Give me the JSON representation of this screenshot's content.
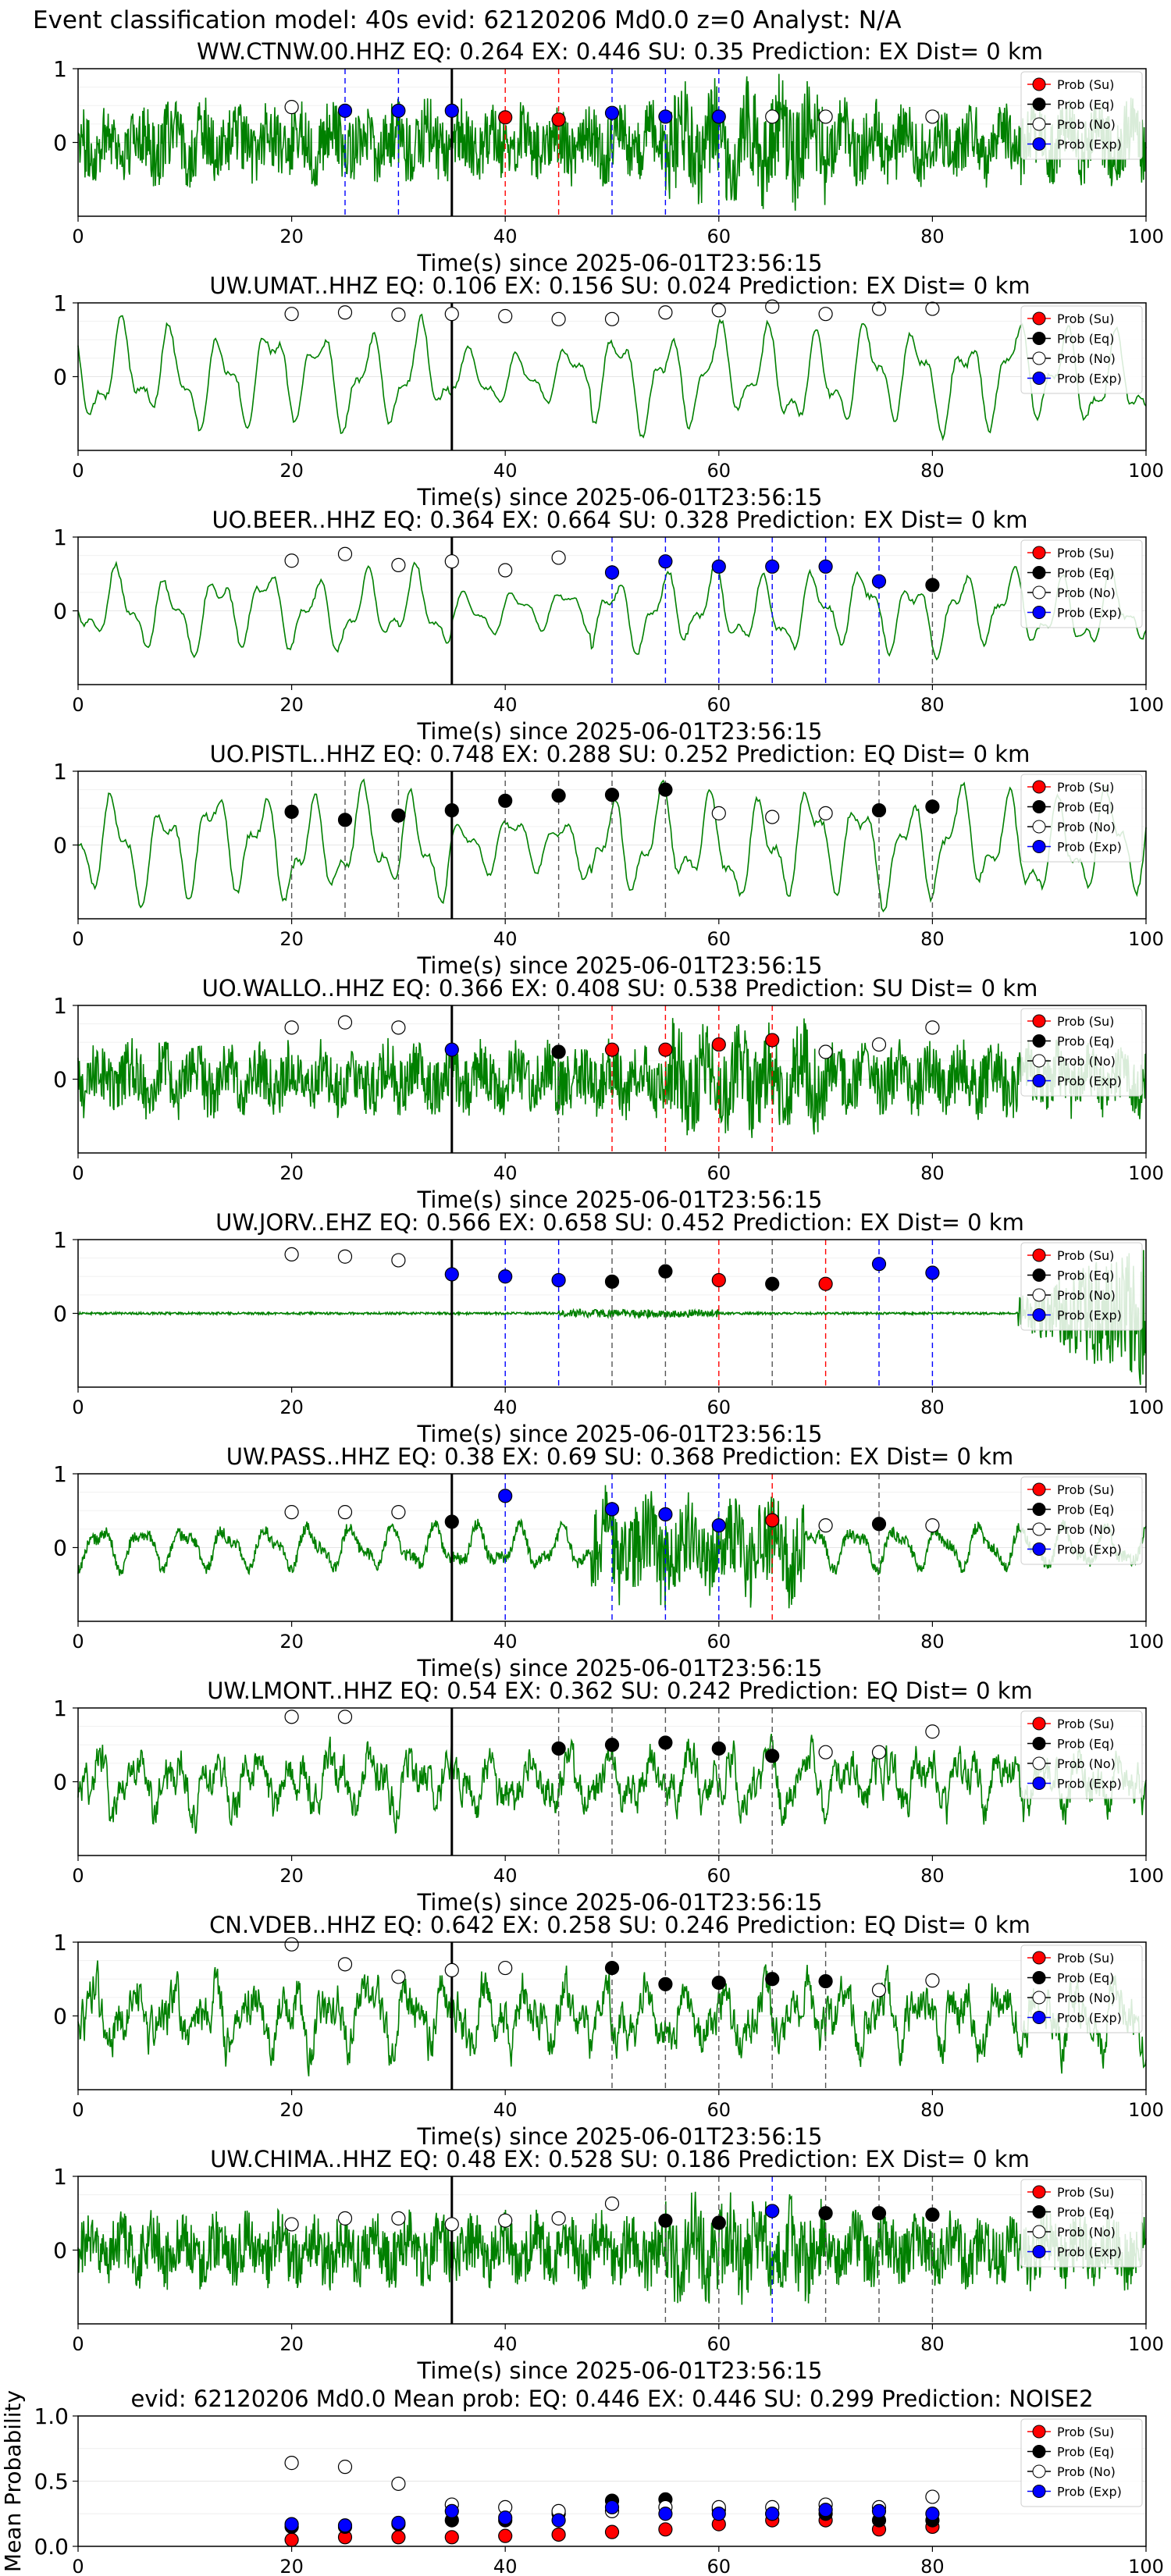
{
  "figure": {
    "suptitle": "Event classification model: 40s evid: 62120206 Md0.0 z=0 Analyst: N/A"
  },
  "legend_entries": [
    "Prob (Su)",
    "Prob (Eq)",
    "Prob (No)",
    "Prob (Exp)"
  ],
  "colors": {
    "waveform": "#008000",
    "su": "#ff0000",
    "eq": "#000000",
    "no": "#ffffff",
    "exp": "#0000ff",
    "origin_line": "#000000"
  },
  "chart_data": [
    {
      "type": "line",
      "title": "WW.CTNW.00.HHZ   EQ: 0.264  EX: 0.446  SU: 0.35   Prediction: EX    Dist= 0 km",
      "xlabel": "Time(s) since 2025-06-01T23:56:15",
      "xlim": [
        0,
        100
      ],
      "ylim": [
        -1,
        1
      ],
      "xticks": [
        0,
        20,
        40,
        60,
        80,
        100
      ],
      "yticks": [
        0,
        1
      ],
      "origin_time": 35,
      "noise_style": "hf",
      "amplitude": 0.5,
      "points": [
        {
          "x": 20,
          "y": 0.48,
          "cls": "no"
        },
        {
          "x": 25,
          "y": 0.43,
          "cls": "exp"
        },
        {
          "x": 30,
          "y": 0.43,
          "cls": "exp"
        },
        {
          "x": 35,
          "y": 0.43,
          "cls": "exp"
        },
        {
          "x": 40,
          "y": 0.34,
          "cls": "su"
        },
        {
          "x": 45,
          "y": 0.31,
          "cls": "su"
        },
        {
          "x": 50,
          "y": 0.4,
          "cls": "exp"
        },
        {
          "x": 55,
          "y": 0.35,
          "cls": "exp"
        },
        {
          "x": 60,
          "y": 0.35,
          "cls": "exp"
        },
        {
          "x": 65,
          "y": 0.35,
          "cls": "no"
        },
        {
          "x": 70,
          "y": 0.35,
          "cls": "no"
        },
        {
          "x": 80,
          "y": 0.35,
          "cls": "no"
        }
      ]
    },
    {
      "type": "line",
      "title": "UW.UMAT..HHZ   EQ: 0.106  EX: 0.156  SU: 0.024   Prediction: EX    Dist= 0 km",
      "xlabel": "Time(s) since 2025-06-01T23:56:15",
      "xlim": [
        0,
        100
      ],
      "ylim": [
        -1,
        1
      ],
      "xticks": [
        0,
        20,
        40,
        60,
        80,
        100
      ],
      "yticks": [
        0,
        1
      ],
      "origin_time": 35,
      "noise_style": "lf",
      "amplitude": 0.7,
      "points": [
        {
          "x": 20,
          "y": 0.85,
          "cls": "no"
        },
        {
          "x": 25,
          "y": 0.87,
          "cls": "no"
        },
        {
          "x": 30,
          "y": 0.84,
          "cls": "no"
        },
        {
          "x": 35,
          "y": 0.85,
          "cls": "no"
        },
        {
          "x": 40,
          "y": 0.82,
          "cls": "no"
        },
        {
          "x": 45,
          "y": 0.78,
          "cls": "no"
        },
        {
          "x": 50,
          "y": 0.78,
          "cls": "no"
        },
        {
          "x": 55,
          "y": 0.87,
          "cls": "no"
        },
        {
          "x": 60,
          "y": 0.9,
          "cls": "no"
        },
        {
          "x": 65,
          "y": 0.95,
          "cls": "no"
        },
        {
          "x": 70,
          "y": 0.85,
          "cls": "no"
        },
        {
          "x": 75,
          "y": 0.92,
          "cls": "no"
        },
        {
          "x": 80,
          "y": 0.92,
          "cls": "no"
        }
      ]
    },
    {
      "type": "line",
      "title": "UO.BEER..HHZ   EQ: 0.364  EX: 0.664  SU: 0.328   Prediction: EX    Dist= 0 km",
      "xlabel": "Time(s) since 2025-06-01T23:56:15",
      "xlim": [
        0,
        100
      ],
      "ylim": [
        -1,
        1
      ],
      "xticks": [
        0,
        20,
        40,
        60,
        80,
        100
      ],
      "yticks": [
        0,
        1
      ],
      "origin_time": 35,
      "noise_style": "lf",
      "amplitude": 0.55,
      "points": [
        {
          "x": 20,
          "y": 0.68,
          "cls": "no"
        },
        {
          "x": 25,
          "y": 0.77,
          "cls": "no"
        },
        {
          "x": 30,
          "y": 0.62,
          "cls": "no"
        },
        {
          "x": 35,
          "y": 0.67,
          "cls": "no"
        },
        {
          "x": 40,
          "y": 0.55,
          "cls": "no"
        },
        {
          "x": 45,
          "y": 0.72,
          "cls": "no"
        },
        {
          "x": 50,
          "y": 0.52,
          "cls": "exp"
        },
        {
          "x": 55,
          "y": 0.67,
          "cls": "exp"
        },
        {
          "x": 60,
          "y": 0.6,
          "cls": "exp"
        },
        {
          "x": 65,
          "y": 0.6,
          "cls": "exp"
        },
        {
          "x": 70,
          "y": 0.6,
          "cls": "exp"
        },
        {
          "x": 75,
          "y": 0.4,
          "cls": "exp"
        },
        {
          "x": 80,
          "y": 0.35,
          "cls": "eq"
        }
      ]
    },
    {
      "type": "line",
      "title": "UO.PISTL..HHZ   EQ: 0.748  EX: 0.288  SU: 0.252   Prediction: EQ    Dist= 0 km",
      "xlabel": "Time(s) since 2025-06-01T23:56:15",
      "xlim": [
        0,
        100
      ],
      "ylim": [
        -1,
        1
      ],
      "xticks": [
        0,
        20,
        40,
        60,
        80,
        100
      ],
      "yticks": [
        0,
        1
      ],
      "origin_time": 35,
      "noise_style": "lf",
      "amplitude": 0.75,
      "points": [
        {
          "x": 20,
          "y": 0.45,
          "cls": "eq"
        },
        {
          "x": 25,
          "y": 0.34,
          "cls": "eq"
        },
        {
          "x": 30,
          "y": 0.4,
          "cls": "eq"
        },
        {
          "x": 35,
          "y": 0.47,
          "cls": "eq"
        },
        {
          "x": 40,
          "y": 0.6,
          "cls": "eq"
        },
        {
          "x": 45,
          "y": 0.67,
          "cls": "eq"
        },
        {
          "x": 50,
          "y": 0.68,
          "cls": "eq"
        },
        {
          "x": 55,
          "y": 0.75,
          "cls": "eq"
        },
        {
          "x": 60,
          "y": 0.43,
          "cls": "no"
        },
        {
          "x": 65,
          "y": 0.38,
          "cls": "no"
        },
        {
          "x": 70,
          "y": 0.43,
          "cls": "no"
        },
        {
          "x": 75,
          "y": 0.47,
          "cls": "eq"
        },
        {
          "x": 80,
          "y": 0.52,
          "cls": "eq"
        }
      ]
    },
    {
      "type": "line",
      "title": "UO.WALLO..HHZ   EQ: 0.366  EX: 0.408  SU: 0.538   Prediction: SU    Dist= 0 km",
      "xlabel": "Time(s) since 2025-06-01T23:56:15",
      "xlim": [
        0,
        100
      ],
      "ylim": [
        -1,
        1
      ],
      "xticks": [
        0,
        20,
        40,
        60,
        80,
        100
      ],
      "yticks": [
        0,
        1
      ],
      "origin_time": 35,
      "noise_style": "hf",
      "amplitude": 0.45,
      "points": [
        {
          "x": 20,
          "y": 0.7,
          "cls": "no"
        },
        {
          "x": 25,
          "y": 0.77,
          "cls": "no"
        },
        {
          "x": 30,
          "y": 0.7,
          "cls": "no"
        },
        {
          "x": 35,
          "y": 0.4,
          "cls": "exp"
        },
        {
          "x": 45,
          "y": 0.37,
          "cls": "eq"
        },
        {
          "x": 50,
          "y": 0.4,
          "cls": "su"
        },
        {
          "x": 55,
          "y": 0.4,
          "cls": "su"
        },
        {
          "x": 60,
          "y": 0.47,
          "cls": "su"
        },
        {
          "x": 65,
          "y": 0.53,
          "cls": "su"
        },
        {
          "x": 70,
          "y": 0.37,
          "cls": "no"
        },
        {
          "x": 75,
          "y": 0.47,
          "cls": "no"
        },
        {
          "x": 80,
          "y": 0.7,
          "cls": "no"
        }
      ]
    },
    {
      "type": "line",
      "title": "UW.JORV..EHZ   EQ: 0.566  EX: 0.658  SU: 0.452   Prediction: EX    Dist= 0 km",
      "xlabel": "Time(s) since 2025-06-01T23:56:15",
      "xlim": [
        0,
        100
      ],
      "ylim": [
        -1,
        1
      ],
      "xticks": [
        0,
        20,
        40,
        60,
        80,
        100
      ],
      "yticks": [
        0,
        1
      ],
      "origin_time": 35,
      "noise_style": "quiet",
      "amplitude": 0.03,
      "points": [
        {
          "x": 20,
          "y": 0.8,
          "cls": "no"
        },
        {
          "x": 25,
          "y": 0.77,
          "cls": "no"
        },
        {
          "x": 30,
          "y": 0.72,
          "cls": "no"
        },
        {
          "x": 35,
          "y": 0.53,
          "cls": "exp"
        },
        {
          "x": 40,
          "y": 0.5,
          "cls": "exp"
        },
        {
          "x": 45,
          "y": 0.45,
          "cls": "exp"
        },
        {
          "x": 50,
          "y": 0.43,
          "cls": "eq"
        },
        {
          "x": 55,
          "y": 0.57,
          "cls": "eq"
        },
        {
          "x": 60,
          "y": 0.45,
          "cls": "su"
        },
        {
          "x": 65,
          "y": 0.4,
          "cls": "eq"
        },
        {
          "x": 70,
          "y": 0.4,
          "cls": "su"
        },
        {
          "x": 75,
          "y": 0.67,
          "cls": "exp"
        },
        {
          "x": 80,
          "y": 0.55,
          "cls": "exp"
        }
      ]
    },
    {
      "type": "line",
      "title": "UW.PASS..HHZ   EQ: 0.38  EX: 0.69  SU: 0.368   Prediction: EX    Dist= 0 km",
      "xlabel": "Time(s) since 2025-06-01T23:56:15",
      "xlim": [
        0,
        100
      ],
      "ylim": [
        -1,
        1
      ],
      "xticks": [
        0,
        20,
        40,
        60,
        80,
        100
      ],
      "yticks": [
        0,
        1
      ],
      "origin_time": 35,
      "noise_style": "burst",
      "amplitude": 0.4,
      "points": [
        {
          "x": 20,
          "y": 0.48,
          "cls": "no"
        },
        {
          "x": 25,
          "y": 0.48,
          "cls": "no"
        },
        {
          "x": 30,
          "y": 0.48,
          "cls": "no"
        },
        {
          "x": 35,
          "y": 0.35,
          "cls": "eq"
        },
        {
          "x": 40,
          "y": 0.7,
          "cls": "exp"
        },
        {
          "x": 50,
          "y": 0.52,
          "cls": "exp"
        },
        {
          "x": 55,
          "y": 0.45,
          "cls": "exp"
        },
        {
          "x": 60,
          "y": 0.3,
          "cls": "exp"
        },
        {
          "x": 65,
          "y": 0.37,
          "cls": "su"
        },
        {
          "x": 70,
          "y": 0.3,
          "cls": "no"
        },
        {
          "x": 75,
          "y": 0.32,
          "cls": "eq"
        },
        {
          "x": 80,
          "y": 0.3,
          "cls": "no"
        }
      ]
    },
    {
      "type": "line",
      "title": "UW.LMONT..HHZ   EQ: 0.54  EX: 0.362  SU: 0.242   Prediction: EQ    Dist= 0 km",
      "xlabel": "Time(s) since 2025-06-01T23:56:15",
      "xlim": [
        0,
        100
      ],
      "ylim": [
        -1,
        1
      ],
      "xticks": [
        0,
        20,
        40,
        60,
        80,
        100
      ],
      "yticks": [
        0,
        1
      ],
      "origin_time": 35,
      "noise_style": "mf",
      "amplitude": 0.55,
      "points": [
        {
          "x": 20,
          "y": 0.88,
          "cls": "no"
        },
        {
          "x": 25,
          "y": 0.88,
          "cls": "no"
        },
        {
          "x": 45,
          "y": 0.45,
          "cls": "eq"
        },
        {
          "x": 50,
          "y": 0.5,
          "cls": "eq"
        },
        {
          "x": 55,
          "y": 0.53,
          "cls": "eq"
        },
        {
          "x": 60,
          "y": 0.45,
          "cls": "eq"
        },
        {
          "x": 65,
          "y": 0.35,
          "cls": "eq"
        },
        {
          "x": 70,
          "y": 0.4,
          "cls": "no"
        },
        {
          "x": 75,
          "y": 0.4,
          "cls": "no"
        },
        {
          "x": 80,
          "y": 0.68,
          "cls": "no"
        }
      ]
    },
    {
      "type": "line",
      "title": "CN.VDEB..HHZ   EQ: 0.642  EX: 0.258  SU: 0.246   Prediction: EQ    Dist= 0 km",
      "xlabel": "Time(s) since 2025-06-01T23:56:15",
      "xlim": [
        0,
        100
      ],
      "ylim": [
        -1,
        1
      ],
      "xticks": [
        0,
        20,
        40,
        60,
        80,
        100
      ],
      "yticks": [
        0,
        1
      ],
      "origin_time": 35,
      "noise_style": "mf",
      "amplitude": 0.6,
      "points": [
        {
          "x": 20,
          "y": 0.97,
          "cls": "no"
        },
        {
          "x": 25,
          "y": 0.7,
          "cls": "no"
        },
        {
          "x": 30,
          "y": 0.53,
          "cls": "no"
        },
        {
          "x": 35,
          "y": 0.62,
          "cls": "no"
        },
        {
          "x": 40,
          "y": 0.65,
          "cls": "no"
        },
        {
          "x": 50,
          "y": 0.65,
          "cls": "eq"
        },
        {
          "x": 55,
          "y": 0.43,
          "cls": "eq"
        },
        {
          "x": 60,
          "y": 0.45,
          "cls": "eq"
        },
        {
          "x": 65,
          "y": 0.5,
          "cls": "eq"
        },
        {
          "x": 70,
          "y": 0.47,
          "cls": "eq"
        },
        {
          "x": 75,
          "y": 0.35,
          "cls": "no"
        },
        {
          "x": 80,
          "y": 0.48,
          "cls": "no"
        }
      ]
    },
    {
      "type": "line",
      "title": "UW.CHIMA..HHZ   EQ: 0.48  EX: 0.528  SU: 0.186   Prediction: EX    Dist= 0 km",
      "xlabel": "Time(s) since 2025-06-01T23:56:15",
      "xlim": [
        0,
        100
      ],
      "ylim": [
        -1,
        1
      ],
      "xticks": [
        0,
        20,
        40,
        60,
        80,
        100
      ],
      "yticks": [
        0,
        1
      ],
      "origin_time": 35,
      "noise_style": "hf",
      "amplitude": 0.45,
      "points": [
        {
          "x": 20,
          "y": 0.35,
          "cls": "no"
        },
        {
          "x": 25,
          "y": 0.43,
          "cls": "no"
        },
        {
          "x": 30,
          "y": 0.43,
          "cls": "no"
        },
        {
          "x": 35,
          "y": 0.35,
          "cls": "no"
        },
        {
          "x": 40,
          "y": 0.4,
          "cls": "no"
        },
        {
          "x": 45,
          "y": 0.43,
          "cls": "no"
        },
        {
          "x": 50,
          "y": 0.63,
          "cls": "no"
        },
        {
          "x": 55,
          "y": 0.4,
          "cls": "eq"
        },
        {
          "x": 60,
          "y": 0.37,
          "cls": "eq"
        },
        {
          "x": 65,
          "y": 0.53,
          "cls": "exp"
        },
        {
          "x": 70,
          "y": 0.5,
          "cls": "eq"
        },
        {
          "x": 75,
          "y": 0.5,
          "cls": "eq"
        },
        {
          "x": 80,
          "y": 0.48,
          "cls": "eq"
        }
      ]
    },
    {
      "type": "scatter",
      "title": "evid: 62120206  Md0.0   Mean prob:   EQ: 0.446  EX: 0.446  SU: 0.299   Prediction: NOISE2",
      "ylabel": "Mean Probability",
      "xlim": [
        0,
        100
      ],
      "ylim": [
        0,
        1
      ],
      "xticks": [
        0,
        20,
        40,
        60,
        80,
        100
      ],
      "yticks": [
        0.0,
        0.5,
        1.0
      ],
      "x": [
        20,
        25,
        30,
        35,
        40,
        45,
        50,
        55,
        60,
        65,
        70,
        75,
        80
      ],
      "series": [
        {
          "key": "su",
          "values": [
            0.05,
            0.07,
            0.07,
            0.07,
            0.08,
            0.09,
            0.11,
            0.13,
            0.17,
            0.2,
            0.2,
            0.13,
            0.15
          ]
        },
        {
          "key": "eq",
          "values": [
            0.15,
            0.15,
            0.17,
            0.2,
            0.2,
            0.25,
            0.35,
            0.36,
            0.28,
            0.25,
            0.25,
            0.2,
            0.2
          ]
        },
        {
          "key": "no",
          "values": [
            0.64,
            0.61,
            0.48,
            0.32,
            0.3,
            0.27,
            0.27,
            0.3,
            0.3,
            0.3,
            0.32,
            0.3,
            0.38
          ]
        },
        {
          "key": "exp",
          "values": [
            0.17,
            0.16,
            0.18,
            0.27,
            0.22,
            0.2,
            0.3,
            0.25,
            0.25,
            0.25,
            0.28,
            0.27,
            0.25
          ]
        }
      ]
    }
  ]
}
